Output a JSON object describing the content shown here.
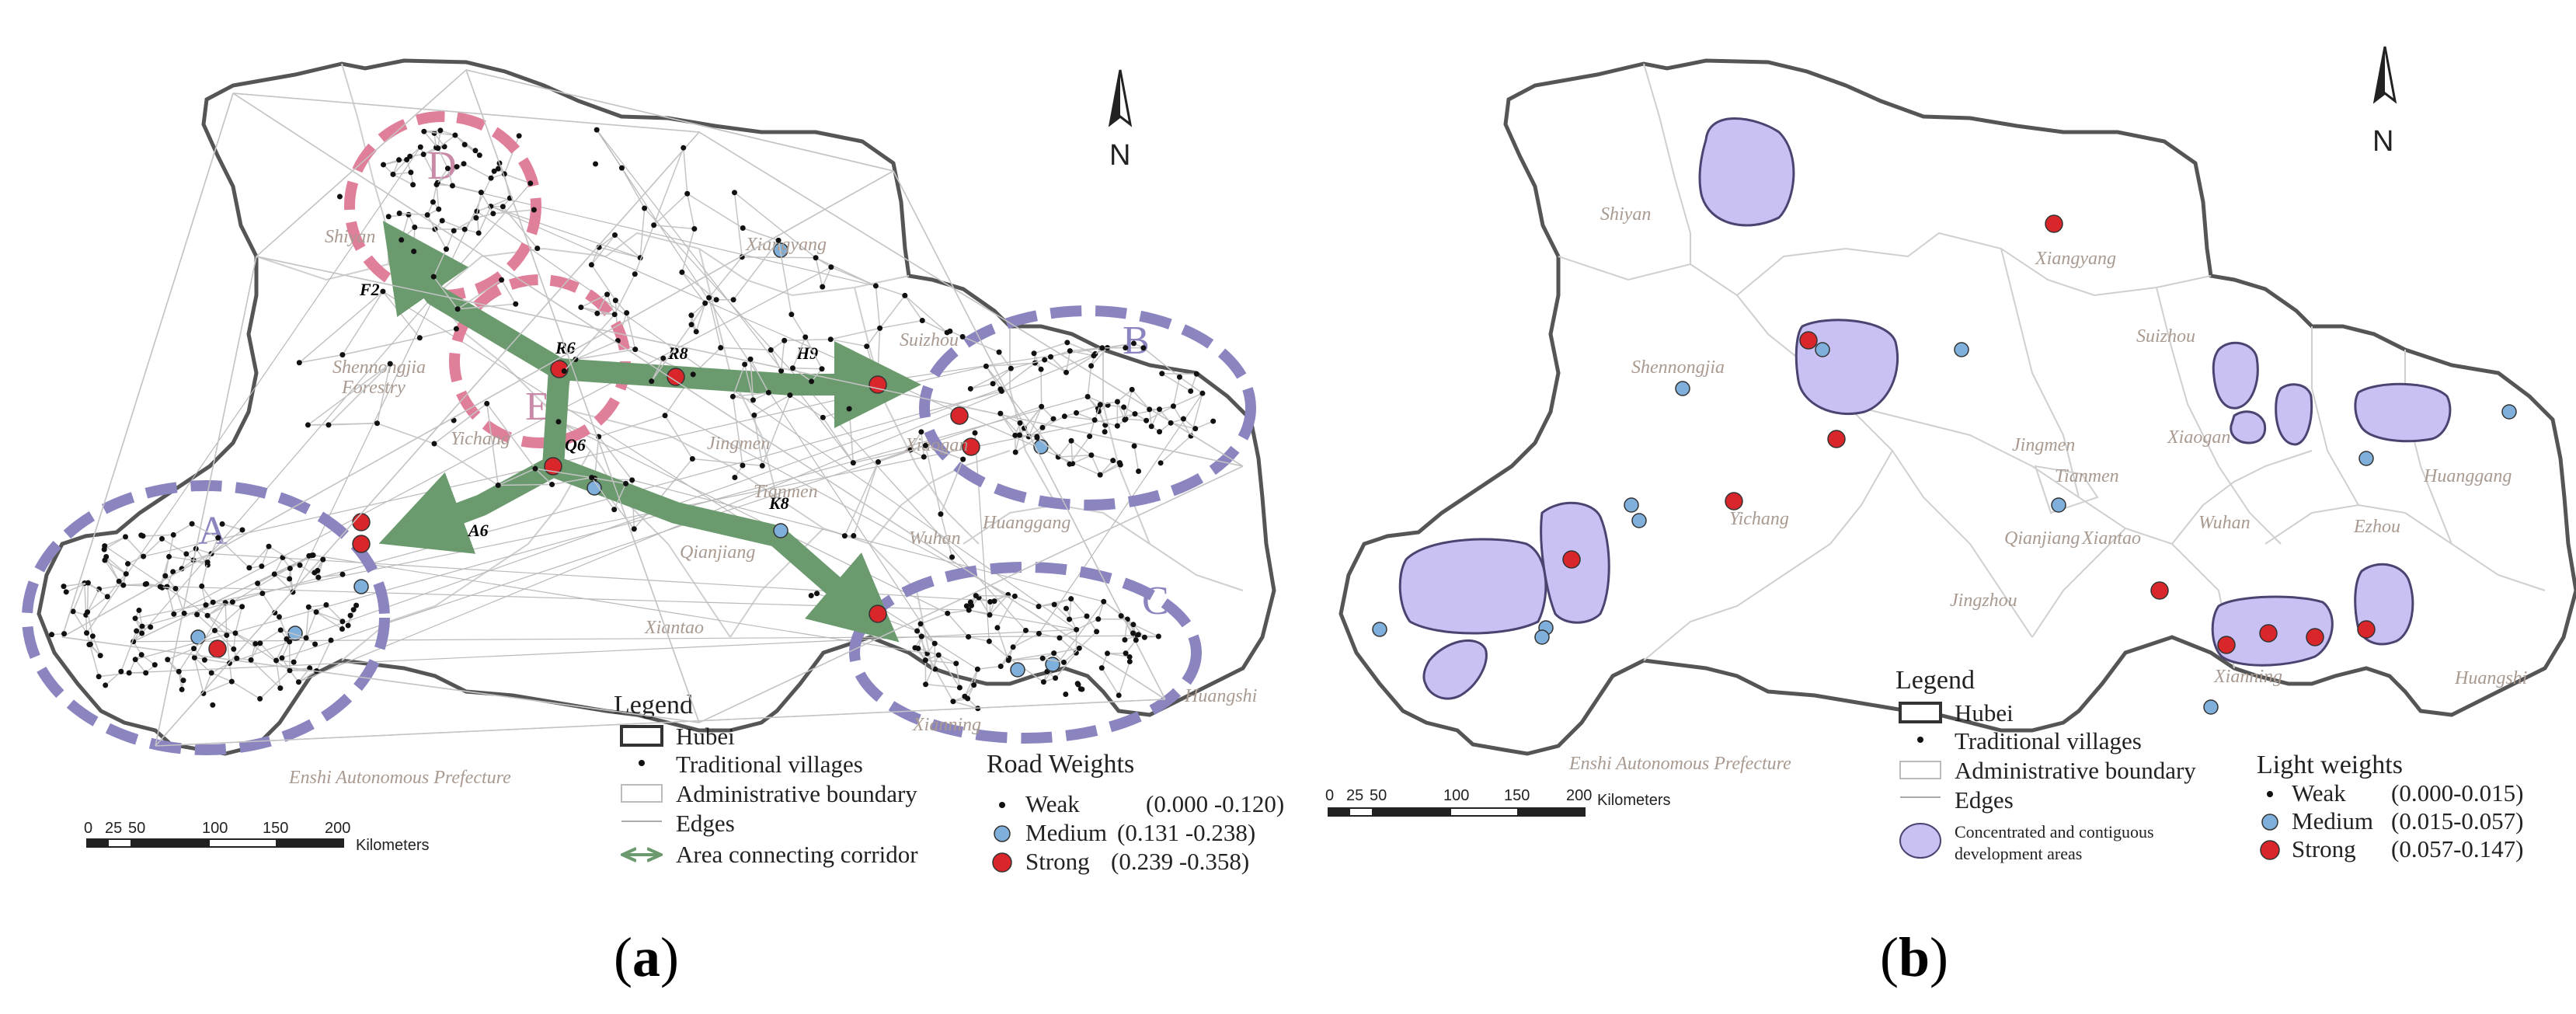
{
  "panel_a": {
    "caption_prefix": "(",
    "caption_letter": "a",
    "caption_suffix": ")",
    "north": "N",
    "zones": [
      "A",
      "B",
      "C",
      "D",
      "E"
    ],
    "cities": [
      "Shiyan",
      "Shennongjia",
      "Forestry",
      "Xiangyang",
      "Suizhou",
      "Xiaogan",
      "Jingmen",
      "Yichang",
      "Xiantao",
      "Wuhan",
      "Huanggang",
      "Qianjiang",
      "Tianmen",
      "Xianning",
      "Huangshi",
      "Enshi Autonomous Prefecture"
    ],
    "nodes": [
      "F2",
      "R6",
      "R8",
      "H9",
      "Q6",
      "A6",
      "K8"
    ],
    "scale": {
      "ticks": [
        "0",
        "25",
        "50",
        "100",
        "150",
        "200"
      ],
      "unit": "Kilometers"
    },
    "legend": {
      "title": "Legend",
      "items": [
        "Hubei",
        "Traditional villages",
        "Administrative boundary",
        "Edges",
        "Area connecting corridor"
      ],
      "weights_title": "Road Weights",
      "weights": [
        {
          "label": "Weak",
          "range": "(0.000 -0.120)"
        },
        {
          "label": "Medium",
          "range": "(0.131 -0.238)"
        },
        {
          "label": "Strong",
          "range": "(0.239 -0.358)"
        }
      ]
    }
  },
  "panel_b": {
    "caption_prefix": "(",
    "caption_letter": "b",
    "caption_suffix": ")",
    "north": "N",
    "cities": [
      "Shiyan",
      "Shennongjia",
      "Xiangyang",
      "Suizhou",
      "Xiaogan",
      "Jingmen",
      "Yichang",
      "Wuhan",
      "Huanggang",
      "Tianmen",
      "Qianjiang",
      "Xiantao",
      "Jingzhou",
      "Ezhou",
      "Xianning",
      "Huangshi",
      "Enshi Autonomous Prefecture"
    ],
    "scale": {
      "ticks": [
        "0",
        "25",
        "50",
        "100",
        "150",
        "200"
      ],
      "unit": "Kilometers"
    },
    "legend": {
      "title": "Legend",
      "items": [
        "Hubei",
        "Traditional villages",
        "Administrative boundary",
        "Edges",
        "Concentrated and contiguous",
        "development areas"
      ],
      "weights_title": "Light weights",
      "weights": [
        {
          "label": "Weak",
          "range": "(0.000-0.015)"
        },
        {
          "label": "Medium",
          "range": "(0.015-0.057)"
        },
        {
          "label": "Strong",
          "range": "(0.057-0.147)"
        }
      ]
    }
  },
  "colors": {
    "boundary": "#555555",
    "admin": "#cfcfcf",
    "edges": "#c4c4c4",
    "zone_blue": "#8a85bf",
    "zone_pink": "#e07f9a",
    "corridor": "#6b9a6e",
    "node_weak": "#111111",
    "node_medium": "#7fb0dc",
    "node_strong": "#d9262b",
    "cluster_fill": "#c9c0f3",
    "cluster_stroke": "#4a4470",
    "city_label": "#a89a90"
  }
}
